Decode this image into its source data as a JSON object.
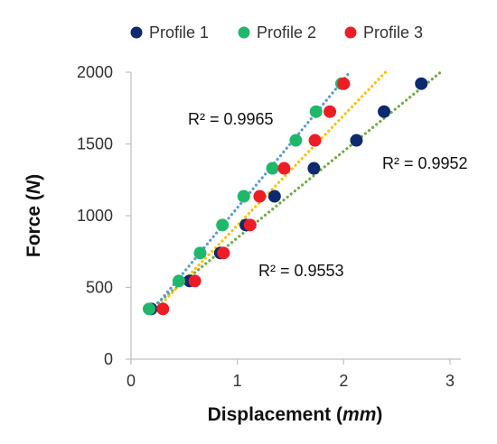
{
  "chart_data": {
    "type": "scatter",
    "xlabel": {
      "main": "Displacement",
      "unit": "mm"
    },
    "ylabel": {
      "main": "Force",
      "unit": "N"
    },
    "xlim": [
      0,
      3
    ],
    "ylim": [
      0,
      2000
    ],
    "x_ticks": [
      0,
      1,
      2,
      3
    ],
    "y_ticks": [
      0,
      500,
      1000,
      1500,
      2000
    ],
    "grid": false,
    "legend_position": "top",
    "series": [
      {
        "name": "Profile 1",
        "color": "#0d2a6e",
        "points": [
          [
            0.19,
            350
          ],
          [
            0.55,
            545
          ],
          [
            0.84,
            740
          ],
          [
            1.08,
            935
          ],
          [
            1.35,
            1135
          ],
          [
            1.72,
            1330
          ],
          [
            2.12,
            1525
          ],
          [
            2.38,
            1725
          ],
          [
            2.73,
            1920
          ]
        ],
        "trendline": {
          "color": "#70ad47",
          "x_range": [
            0.18,
            2.92
          ],
          "y_range": [
            350,
            2005
          ],
          "r2_label": "R² = 0.9952"
        }
      },
      {
        "name": "Profile 2",
        "color": "#1fb86a",
        "points": [
          [
            0.17,
            350
          ],
          [
            0.45,
            545
          ],
          [
            0.65,
            740
          ],
          [
            0.86,
            935
          ],
          [
            1.06,
            1135
          ],
          [
            1.33,
            1330
          ],
          [
            1.55,
            1525
          ],
          [
            1.74,
            1725
          ],
          [
            1.98,
            1920
          ]
        ],
        "trendline": {
          "color": "#5b9bd5",
          "x_range": [
            0.2,
            2.04
          ],
          "y_range": [
            340,
            1985
          ],
          "r2_label": "R² = 0.9965"
        }
      },
      {
        "name": "Profile 3",
        "color": "#ee1c24",
        "points": [
          [
            0.3,
            350
          ],
          [
            0.6,
            545
          ],
          [
            0.87,
            740
          ],
          [
            1.12,
            935
          ],
          [
            1.21,
            1135
          ],
          [
            1.44,
            1330
          ],
          [
            1.73,
            1525
          ],
          [
            1.87,
            1725
          ],
          [
            2.0,
            1920
          ]
        ],
        "trendline": {
          "color": "#ffc000",
          "x_range": [
            0.2,
            2.4
          ],
          "y_range": [
            320,
            2005
          ],
          "r2_label": "R² = 0.9553"
        }
      }
    ]
  }
}
